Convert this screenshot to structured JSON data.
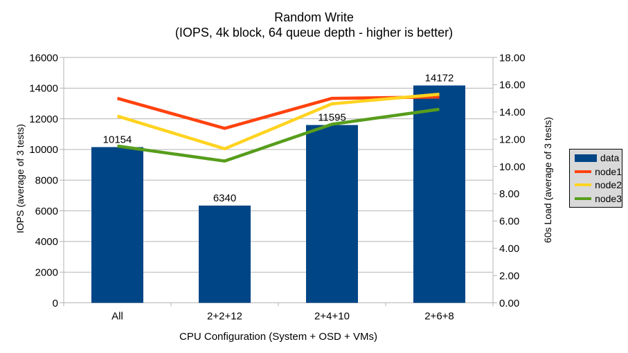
{
  "page": {
    "background": "#ffffff"
  },
  "chart_data": {
    "type": "bar-line-combo",
    "title": "Random Write",
    "subtitle": "(IOPS, 4k block, 64 queue depth - higher is better)",
    "xlabel": "CPU Configuration (System + OSD + VMs)",
    "categories": [
      "All",
      "2+2+12",
      "2+4+10",
      "2+6+8"
    ],
    "left_axis": {
      "label": "IOPS (average of 3 tests)",
      "min": 0,
      "max": 16000,
      "tick_values": [
        0,
        2000,
        4000,
        6000,
        8000,
        10000,
        12000,
        14000,
        16000
      ],
      "tick_labels": [
        "0",
        "2000",
        "4000",
        "6000",
        "8000",
        "10000",
        "12000",
        "14000",
        "16000"
      ]
    },
    "right_axis": {
      "label": "60s Load (average of 3 tests)",
      "min": 0,
      "max": 18,
      "tick_values": [
        0,
        2,
        4,
        6,
        8,
        10,
        12,
        14,
        16,
        18
      ],
      "tick_labels": [
        "0.00",
        "2.00",
        "4.00",
        "6.00",
        "8.00",
        "10.00",
        "12.00",
        "14.00",
        "16.00",
        "18.00"
      ]
    },
    "bar_series": {
      "name": "data",
      "axis": "left",
      "color": "#004586",
      "values": [
        10154,
        6340,
        11595,
        14172
      ],
      "data_labels": [
        "10154",
        "6340",
        "11595",
        "14172"
      ]
    },
    "line_series": [
      {
        "name": "node1",
        "axis": "right",
        "color": "#ff420e",
        "values": [
          15.0,
          12.8,
          15.0,
          15.1
        ]
      },
      {
        "name": "node2",
        "axis": "right",
        "color": "#ffd320",
        "values": [
          13.7,
          11.3,
          14.6,
          15.3
        ]
      },
      {
        "name": "node3",
        "axis": "right",
        "color": "#579d1c",
        "values": [
          11.5,
          10.4,
          13.1,
          14.2
        ]
      }
    ],
    "legend": {
      "position": "right",
      "entries": [
        "data",
        "node1",
        "node2",
        "node3"
      ]
    },
    "grid": "horizontal-only",
    "colors": {
      "grid": "#b3b3b3",
      "axis": "#b3b3b3",
      "text": "#000000",
      "legend_bg": "#d9d9d9",
      "legend_border": "#000000"
    }
  }
}
